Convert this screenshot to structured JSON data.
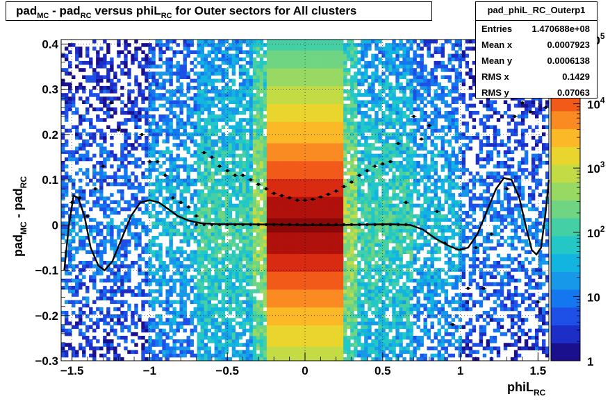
{
  "title": {
    "parts": [
      "pad",
      "MC",
      " - pad",
      "RC",
      " versus phiL",
      "RC",
      " for Outer sectors for All clusters"
    ]
  },
  "stats_box": {
    "name": "pad_phiL_RC_Outerp1",
    "rows": [
      {
        "label": "Entries",
        "value": "1.470688e+08"
      },
      {
        "label": "Mean x",
        "value": "0.0007923"
      },
      {
        "label": "Mean y",
        "value": "0.0006138"
      },
      {
        "label": "RMS x",
        "value": "0.1429"
      },
      {
        "label": "RMS y",
        "value": "0.07063"
      }
    ]
  },
  "axis_titles": {
    "y": {
      "main1": "pad",
      "sub1": "MC",
      "main2": " - pad",
      "sub2": "RC"
    },
    "x": {
      "main": "phiL",
      "sub": "RC"
    }
  },
  "chart_data": {
    "type": "heatmap",
    "x_range": [
      -1.57,
      1.57
    ],
    "y_range": [
      -0.3,
      0.41
    ],
    "x_ticks": [
      -1.5,
      -1,
      -0.5,
      0,
      0.5,
      1,
      1.5
    ],
    "x_tick_labels": [
      "−1.5",
      "−1",
      "−0.5",
      "0",
      "0.5",
      "1",
      "1.5"
    ],
    "y_ticks": [
      -0.3,
      -0.2,
      -0.1,
      0,
      0.1,
      0.2,
      0.3,
      0.4
    ],
    "y_tick_labels": [
      "−0.3",
      "−0.2",
      "−0.1",
      "0",
      "0.1",
      "0.2",
      "0.3",
      "0.4"
    ],
    "grid": true,
    "z_scale": "log",
    "z_range": [
      1,
      100000
    ],
    "z_ticks": [
      1,
      10,
      100,
      1000,
      10000,
      100000
    ],
    "z_tick_labels": [
      {
        "base": "1",
        "exp": ""
      },
      {
        "base": "10",
        "exp": ""
      },
      {
        "base": "10",
        "exp": "2"
      },
      {
        "base": "10",
        "exp": "3"
      },
      {
        "base": "10",
        "exp": "4"
      },
      {
        "base": "10",
        "exp": "5"
      }
    ],
    "dense_band_x": [
      -0.25,
      0.25
    ],
    "profile_points": [
      {
        "x": -1.5,
        "y": 0.05
      },
      {
        "x": -1.45,
        "y": 0.06
      },
      {
        "x": -1.4,
        "y": 0.02
      },
      {
        "x": -1.35,
        "y": 0.08
      },
      {
        "x": -1.3,
        "y": 0.13
      },
      {
        "x": -1.25,
        "y": 0.27
      },
      {
        "x": -1.2,
        "y": 0.21
      },
      {
        "x": -1.05,
        "y": 0.2
      },
      {
        "x": -1.0,
        "y": 0.14
      },
      {
        "x": -0.95,
        "y": 0.14
      },
      {
        "x": -0.9,
        "y": 0.11
      },
      {
        "x": -0.85,
        "y": 0.06
      },
      {
        "x": -0.8,
        "y": 0.05
      },
      {
        "x": -0.75,
        "y": 0.04
      },
      {
        "x": -0.7,
        "y": 0.02
      },
      {
        "x": -0.65,
        "y": 0.16
      },
      {
        "x": -0.6,
        "y": 0.15
      },
      {
        "x": -0.55,
        "y": 0.13
      },
      {
        "x": -0.5,
        "y": 0.12
      },
      {
        "x": -0.45,
        "y": 0.11
      },
      {
        "x": -0.4,
        "y": 0.11
      },
      {
        "x": -0.35,
        "y": 0.1
      },
      {
        "x": -0.3,
        "y": 0.09
      },
      {
        "x": -0.25,
        "y": 0.08
      },
      {
        "x": -0.2,
        "y": 0.07
      },
      {
        "x": -0.15,
        "y": 0.065
      },
      {
        "x": -0.1,
        "y": 0.06
      },
      {
        "x": -0.05,
        "y": 0.055
      },
      {
        "x": 0.0,
        "y": 0.055
      },
      {
        "x": 0.05,
        "y": 0.057
      },
      {
        "x": 0.1,
        "y": 0.062
      },
      {
        "x": 0.15,
        "y": 0.068
      },
      {
        "x": 0.2,
        "y": 0.075
      },
      {
        "x": 0.25,
        "y": 0.085
      },
      {
        "x": 0.3,
        "y": 0.095
      },
      {
        "x": 0.35,
        "y": 0.11
      },
      {
        "x": 0.4,
        "y": 0.12
      },
      {
        "x": 0.45,
        "y": 0.13
      },
      {
        "x": 0.5,
        "y": 0.135
      },
      {
        "x": 0.55,
        "y": 0.14
      },
      {
        "x": 0.6,
        "y": 0.18
      },
      {
        "x": 0.65,
        "y": 0.05
      },
      {
        "x": 0.7,
        "y": 0.24
      },
      {
        "x": 0.75,
        "y": 0.19
      },
      {
        "x": 0.8,
        "y": 0.22
      },
      {
        "x": 0.85,
        "y": 0.03
      },
      {
        "x": 0.9,
        "y": -0.04
      },
      {
        "x": 0.95,
        "y": -0.22
      },
      {
        "x": 1.05,
        "y": -0.14
      },
      {
        "x": 1.1,
        "y": -0.05
      },
      {
        "x": 1.15,
        "y": -0.14
      },
      {
        "x": 1.2,
        "y": -0.02
      },
      {
        "x": 1.3,
        "y": 0.08
      },
      {
        "x": 1.35,
        "y": 0.24
      },
      {
        "x": 1.4,
        "y": 0.27
      },
      {
        "x": 1.45,
        "y": 0.25
      },
      {
        "x": 1.5,
        "y": -0.17
      },
      {
        "x": 1.55,
        "y": 0.26
      }
    ],
    "fit_curve_points": [
      [
        -1.55,
        -0.1
      ],
      [
        -1.52,
        0.0
      ],
      [
        -1.49,
        0.065
      ],
      [
        -1.46,
        0.06
      ],
      [
        -1.42,
        0.02
      ],
      [
        -1.38,
        -0.05
      ],
      [
        -1.33,
        -0.09
      ],
      [
        -1.29,
        -0.1
      ],
      [
        -1.24,
        -0.08
      ],
      [
        -1.18,
        -0.03
      ],
      [
        -1.12,
        0.02
      ],
      [
        -1.06,
        0.05
      ],
      [
        -1.0,
        0.055
      ],
      [
        -0.94,
        0.05
      ],
      [
        -0.88,
        0.035
      ],
      [
        -0.82,
        0.02
      ],
      [
        -0.75,
        0.01
      ],
      [
        -0.67,
        0.004
      ],
      [
        -0.55,
        0.002
      ],
      [
        -0.4,
        0.002
      ],
      [
        -0.2,
        0.001
      ],
      [
        0.0,
        0.0
      ],
      [
        0.2,
        0.0
      ],
      [
        0.4,
        0.001
      ],
      [
        0.55,
        0.002
      ],
      [
        0.68,
        0.0
      ],
      [
        0.76,
        -0.01
      ],
      [
        0.84,
        -0.03
      ],
      [
        0.92,
        -0.045
      ],
      [
        0.99,
        -0.055
      ],
      [
        1.05,
        -0.05
      ],
      [
        1.11,
        -0.02
      ],
      [
        1.17,
        0.03
      ],
      [
        1.23,
        0.08
      ],
      [
        1.28,
        0.104
      ],
      [
        1.33,
        0.1
      ],
      [
        1.38,
        0.06
      ],
      [
        1.42,
        0.0
      ],
      [
        1.46,
        -0.055
      ],
      [
        1.49,
        -0.065
      ],
      [
        1.52,
        -0.05
      ],
      [
        1.55,
        0.03
      ],
      [
        1.57,
        0.1
      ]
    ]
  }
}
